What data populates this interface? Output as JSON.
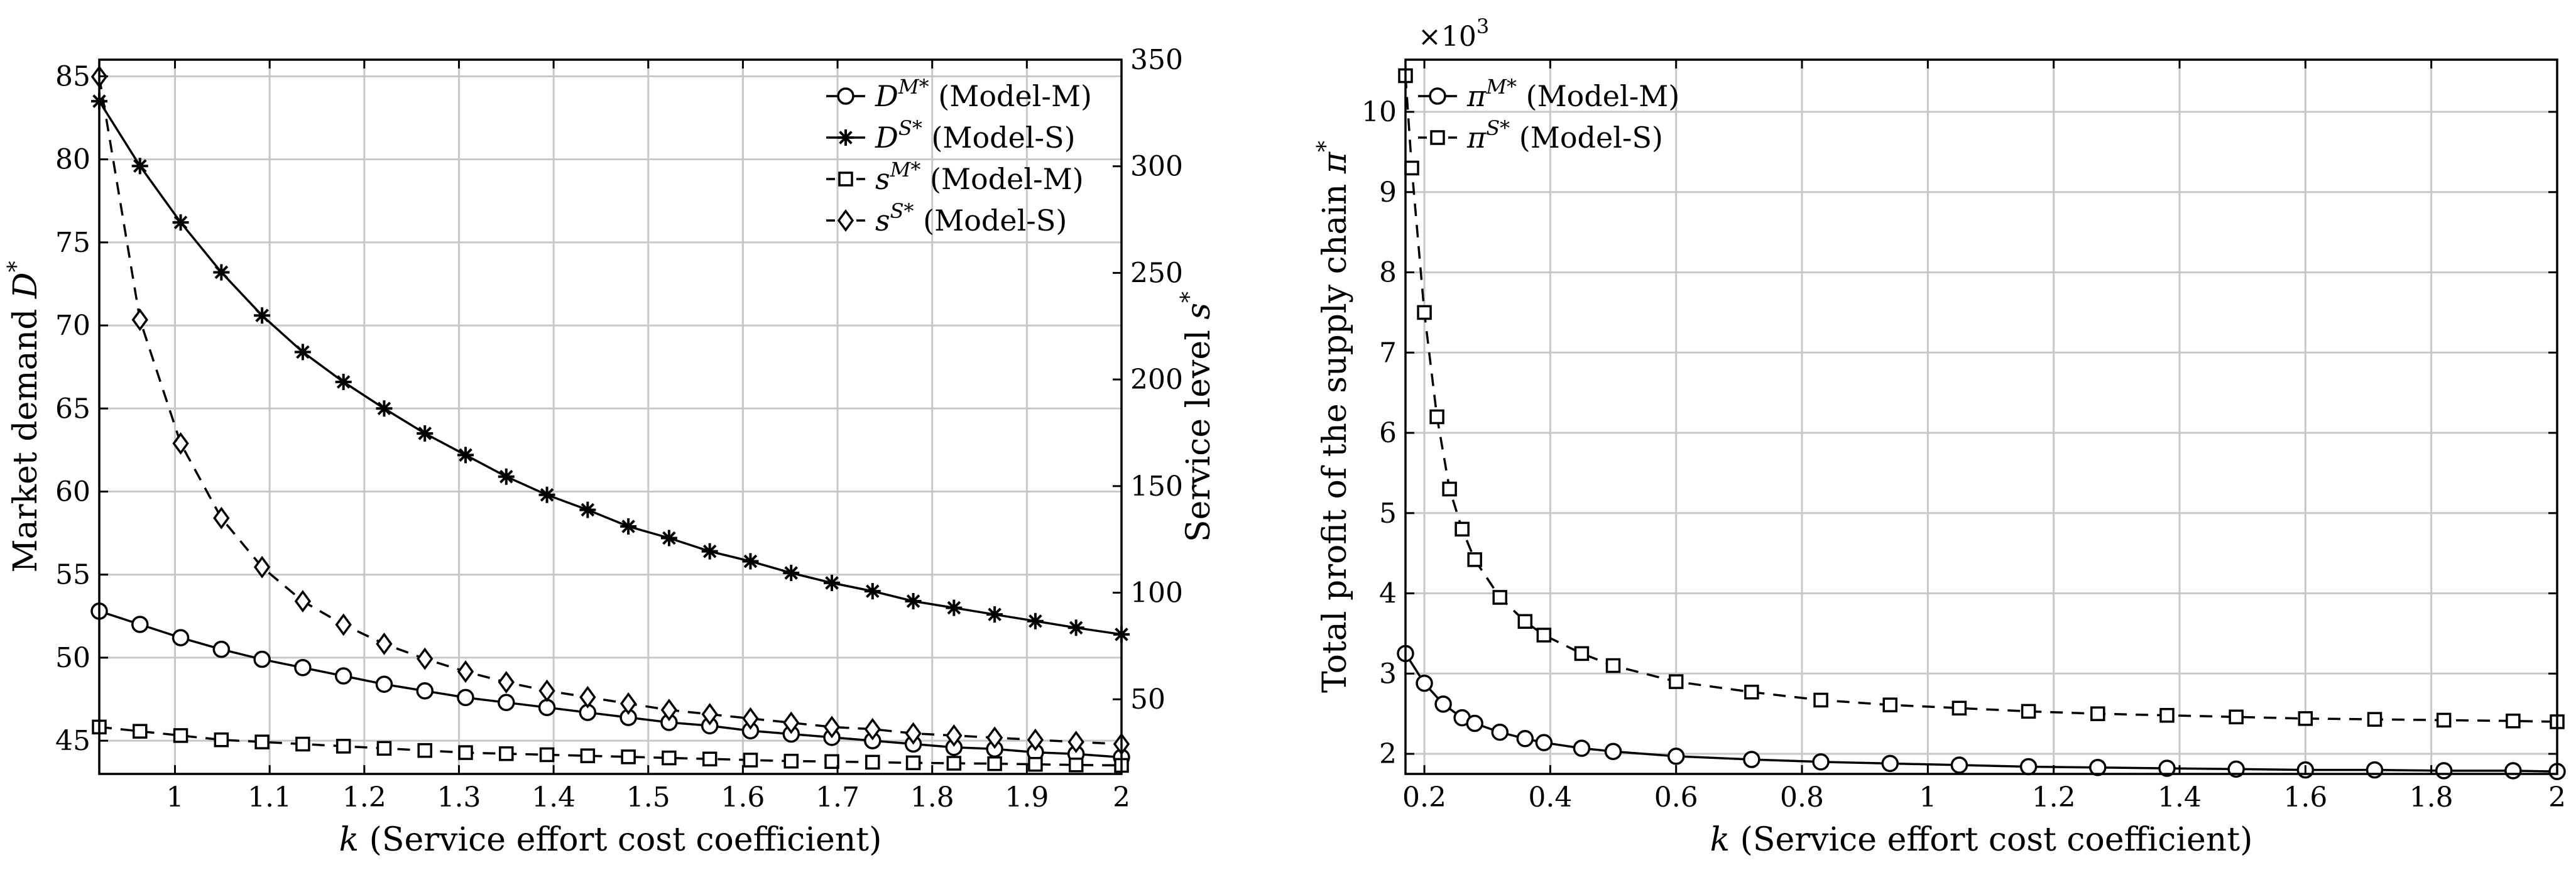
{
  "chart_data": [
    {
      "type": "line",
      "id": "left",
      "xlabel": "k (Service effort cost coefficient)",
      "ylabel_left": "Market demand D*",
      "ylabel_right": "Service level s*",
      "xlim": [
        0.92,
        2.0
      ],
      "ylim_left": [
        43,
        86
      ],
      "ylim_right": [
        15,
        350
      ],
      "xticks": [
        1,
        1.1,
        1.2,
        1.3,
        1.4,
        1.5,
        1.6,
        1.7,
        1.8,
        1.9,
        2
      ],
      "xtick_labels": [
        "1",
        "1.1",
        "1.2",
        "1.3",
        "1.4",
        "1.5",
        "1.6",
        "1.7",
        "1.8",
        "1.9",
        "2"
      ],
      "yticks_left": [
        45,
        50,
        55,
        60,
        65,
        70,
        75,
        80,
        85
      ],
      "yticks_right": [
        50,
        100,
        150,
        200,
        250,
        300,
        350
      ],
      "legend_position": "top-right",
      "series": [
        {
          "name": "D^{M*} (Model-M)",
          "sym": "D",
          "sup": "M*",
          "model": "(Model-M)",
          "marker": "circle",
          "dash": false,
          "axis": "left",
          "x": [
            0.92,
            0.963,
            1.006,
            1.049,
            1.092,
            1.135,
            1.178,
            1.221,
            1.264,
            1.307,
            1.35,
            1.393,
            1.436,
            1.479,
            1.522,
            1.565,
            1.608,
            1.651,
            1.694,
            1.737,
            1.78,
            1.823,
            1.866,
            1.909,
            1.952,
            2.0
          ],
          "values": [
            52.8,
            52.0,
            51.2,
            50.5,
            49.9,
            49.4,
            48.9,
            48.4,
            48.0,
            47.6,
            47.3,
            47.0,
            46.7,
            46.4,
            46.1,
            45.9,
            45.6,
            45.4,
            45.2,
            45.0,
            44.8,
            44.6,
            44.5,
            44.3,
            44.2,
            44.0
          ]
        },
        {
          "name": "D^{S*} (Model-S)",
          "sym": "D",
          "sup": "S*",
          "model": "(Model-S)",
          "marker": "asterisk",
          "dash": false,
          "axis": "left",
          "x": [
            0.92,
            0.963,
            1.006,
            1.049,
            1.092,
            1.135,
            1.178,
            1.221,
            1.264,
            1.307,
            1.35,
            1.393,
            1.436,
            1.479,
            1.522,
            1.565,
            1.608,
            1.651,
            1.694,
            1.737,
            1.78,
            1.823,
            1.866,
            1.909,
            1.952,
            2.0
          ],
          "values": [
            83.5,
            79.6,
            76.2,
            73.2,
            70.6,
            68.4,
            66.6,
            65.0,
            63.5,
            62.2,
            60.9,
            59.8,
            58.9,
            57.9,
            57.2,
            56.4,
            55.8,
            55.1,
            54.5,
            54.0,
            53.4,
            53.0,
            52.6,
            52.2,
            51.8,
            51.4
          ]
        },
        {
          "name": "s^{M*} (Model-M)",
          "sym": "s",
          "sup": "M*",
          "model": "(Model-M)",
          "marker": "square",
          "dash": true,
          "axis": "right",
          "x": [
            0.92,
            0.963,
            1.006,
            1.049,
            1.092,
            1.135,
            1.178,
            1.221,
            1.264,
            1.307,
            1.35,
            1.393,
            1.436,
            1.479,
            1.522,
            1.565,
            1.608,
            1.651,
            1.694,
            1.737,
            1.78,
            1.823,
            1.866,
            1.909,
            1.952,
            2.0
          ],
          "values": [
            37,
            35,
            33,
            31,
            30,
            29,
            28,
            27,
            26,
            25,
            24.5,
            24,
            23.5,
            23,
            22.5,
            22,
            21.5,
            21,
            20.8,
            20.5,
            20.2,
            20,
            19.8,
            19.5,
            19.2,
            19
          ]
        },
        {
          "name": "s^{S*} (Model-S)",
          "sym": "s",
          "sup": "S*",
          "model": "(Model-S)",
          "marker": "diamond",
          "dash": true,
          "axis": "right",
          "x": [
            0.92,
            0.963,
            1.006,
            1.049,
            1.092,
            1.135,
            1.178,
            1.221,
            1.264,
            1.307,
            1.35,
            1.393,
            1.436,
            1.479,
            1.522,
            1.565,
            1.608,
            1.651,
            1.694,
            1.737,
            1.78,
            1.823,
            1.866,
            1.909,
            1.952,
            2.0
          ],
          "values": [
            342,
            228,
            170,
            135,
            112,
            96,
            85,
            76,
            69,
            63,
            58,
            54,
            51,
            48,
            45,
            43,
            41,
            39,
            37,
            36,
            34,
            33,
            32,
            31,
            30,
            29
          ]
        }
      ]
    },
    {
      "type": "line",
      "id": "right",
      "xlabel": "k (Service effort cost coefficient)",
      "ylabel": "Total profit of the supply chain π*",
      "scale_label_base": "×10",
      "scale_label_exp": "3",
      "xlim": [
        0.17,
        2.0
      ],
      "ylim": [
        1.75,
        10.65
      ],
      "xticks": [
        0.2,
        0.4,
        0.6,
        0.8,
        1,
        1.2,
        1.4,
        1.6,
        1.8,
        2
      ],
      "xtick_labels": [
        "0.2",
        "0.4",
        "0.6",
        "0.8",
        "1",
        "1.2",
        "1.4",
        "1.6",
        "1.8",
        "2"
      ],
      "yticks": [
        2,
        3,
        4,
        5,
        6,
        7,
        8,
        9,
        10
      ],
      "legend_position": "top-left",
      "series": [
        {
          "name": "π^{M*} (Model-M)",
          "sym": "π",
          "sup": "M*",
          "model": "(Model-M)",
          "marker": "circle",
          "dash": false,
          "x": [
            0.17,
            0.2,
            0.23,
            0.26,
            0.28,
            0.32,
            0.36,
            0.39,
            0.45,
            0.5,
            0.6,
            0.72,
            0.83,
            0.94,
            1.05,
            1.16,
            1.27,
            1.38,
            1.49,
            1.6,
            1.71,
            1.82,
            1.93,
            2.0
          ],
          "values": [
            3.25,
            2.88,
            2.62,
            2.45,
            2.38,
            2.27,
            2.19,
            2.14,
            2.07,
            2.03,
            1.97,
            1.93,
            1.9,
            1.88,
            1.86,
            1.84,
            1.83,
            1.82,
            1.81,
            1.8,
            1.8,
            1.79,
            1.79,
            1.78
          ]
        },
        {
          "name": "π^{S*} (Model-S)",
          "sym": "π",
          "sup": "S*",
          "model": "(Model-S)",
          "marker": "square",
          "dash": true,
          "x": [
            0.17,
            0.18,
            0.2,
            0.22,
            0.24,
            0.26,
            0.28,
            0.32,
            0.36,
            0.39,
            0.45,
            0.5,
            0.6,
            0.72,
            0.83,
            0.94,
            1.05,
            1.16,
            1.27,
            1.38,
            1.49,
            1.6,
            1.71,
            1.82,
            1.93,
            2.0
          ],
          "values": [
            10.45,
            9.3,
            7.5,
            6.2,
            5.3,
            4.8,
            4.42,
            3.95,
            3.65,
            3.48,
            3.25,
            3.1,
            2.9,
            2.77,
            2.67,
            2.61,
            2.57,
            2.53,
            2.5,
            2.48,
            2.46,
            2.44,
            2.43,
            2.42,
            2.41,
            2.4
          ]
        }
      ]
    }
  ]
}
